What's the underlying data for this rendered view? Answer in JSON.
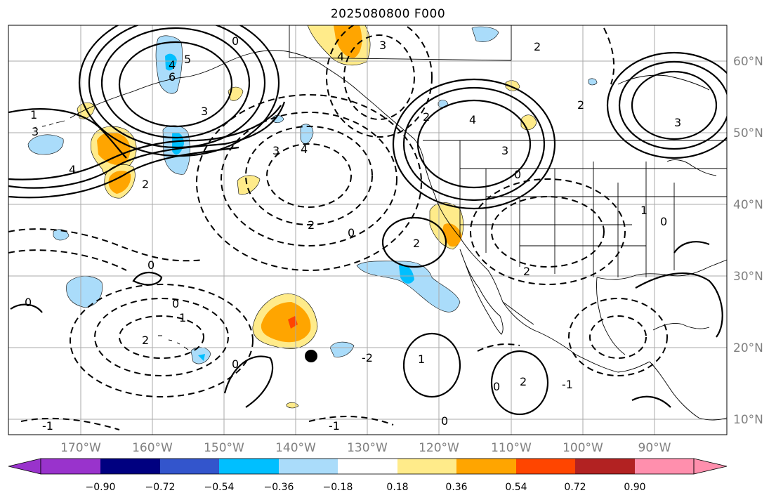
{
  "title": "2025080800 F000",
  "lon_labels": [
    "170°W",
    "160°W",
    "150°W",
    "140°W",
    "130°W",
    "120°W",
    "110°W",
    "100°W",
    "90°W"
  ],
  "lat_labels": [
    "60°N",
    "50°N",
    "40°N",
    "30°N",
    "20°N",
    "10°N"
  ],
  "colorbar": {
    "colors": [
      "#9933cc",
      "#000080",
      "#3355cc",
      "#00bfff",
      "#aadcfa",
      "#ffffff",
      "#ffeb8a",
      "#ffa500",
      "#ff4500",
      "#b22222",
      "#ff8fad"
    ],
    "ticks": [
      "−0.90",
      "−0.72",
      "−0.54",
      "−0.36",
      "−0.18",
      "0.18",
      "0.36",
      "0.54",
      "0.72",
      "0.90"
    ]
  },
  "contour_labels": [
    "0",
    "1",
    "2",
    "3",
    "4",
    "5",
    "6",
    "-1",
    "-2"
  ],
  "marker": "storm-center-dot"
}
